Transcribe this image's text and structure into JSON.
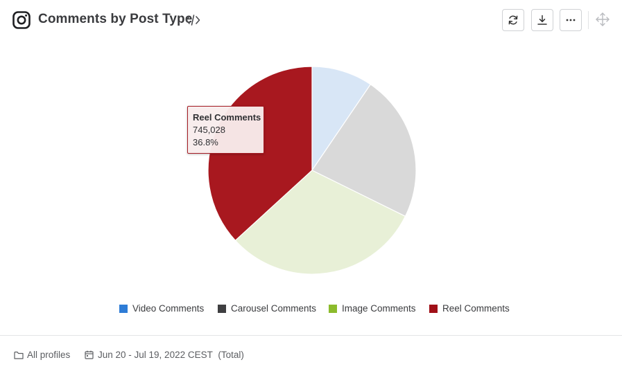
{
  "header": {
    "title": "Comments by Post Type",
    "platform_icon": "instagram-icon",
    "embed_icon": "code-icon",
    "actions": [
      {
        "name": "refresh-icon"
      },
      {
        "name": "download-icon"
      },
      {
        "name": "more-icon"
      },
      {
        "name": "move-icon"
      }
    ]
  },
  "chart_data": {
    "type": "pie",
    "title": "Comments by Post Type",
    "series": [
      {
        "name": "Video Comments",
        "value": 9.5,
        "color": "#2e7cd6",
        "slice_color": "#d8e6f6"
      },
      {
        "name": "Carousel Comments",
        "value": 22.8,
        "color": "#3f3f41",
        "slice_color": "#d9d9d9"
      },
      {
        "name": "Image Comments",
        "value": 30.9,
        "color": "#8cbb2c",
        "slice_color": "#e8f0d7"
      },
      {
        "name": "Reel Comments",
        "value": 36.8,
        "color": "#a01018",
        "slice_color": "#a8181f"
      }
    ],
    "legend_position": "bottom",
    "tooltip": {
      "label": "Reel Comments",
      "value": "745,028",
      "percent": "36.8%"
    }
  },
  "footer": {
    "profiles": "All profiles",
    "daterange": "Jun 20 - Jul 19, 2022 CEST",
    "total": "(Total)"
  }
}
